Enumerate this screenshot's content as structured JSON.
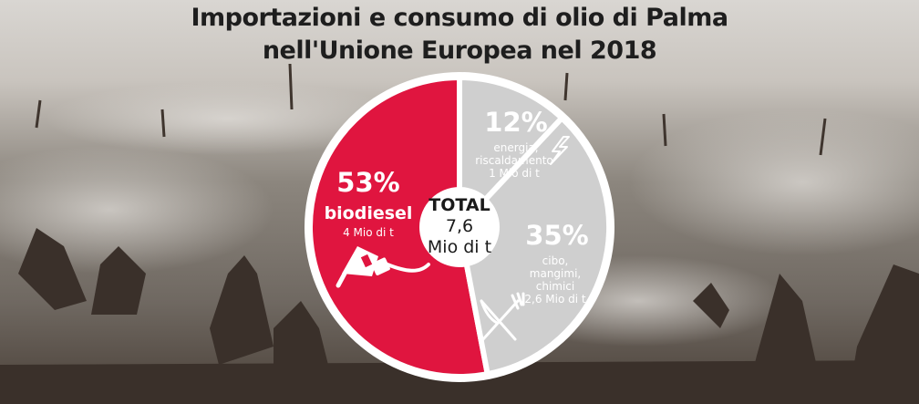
{
  "title_line1": "Importazioni e consumo di olio di Palma",
  "title_line2": "nell'Unione Europea nel 2018",
  "colors": {
    "biodiesel": "#e0153f",
    "other": "#cfcfcf",
    "ring": "#ffffff",
    "title": "#1e1e1e"
  },
  "center": {
    "line1": "TOTAL",
    "line2": "7,6",
    "line3": "Mio di t"
  },
  "chart_data": {
    "type": "pie",
    "title": "Importazioni e consumo di olio di Palma nell'Unione Europea nel 2018",
    "total_label": "TOTAL 7,6 Mio di t",
    "slices": [
      {
        "pct_label": "53%",
        "value": 53,
        "label_lines": [
          "biodiesel"
        ],
        "amount": "4 Mio di t",
        "color": "#e0153f",
        "icon": "fuel-nozzle-icon"
      },
      {
        "pct_label": "12%",
        "value": 12,
        "label_lines": [
          "energia,",
          "riscaldamento"
        ],
        "amount": "1 Mio di t",
        "color": "#cfcfcf",
        "icon": "lightning-icon"
      },
      {
        "pct_label": "35%",
        "value": 35,
        "label_lines": [
          "cibo,",
          "mangimi,",
          "chimici"
        ],
        "amount": "2,6 Mio di t",
        "color": "#cfcfcf",
        "icon": "fork-knife-icon"
      }
    ]
  }
}
